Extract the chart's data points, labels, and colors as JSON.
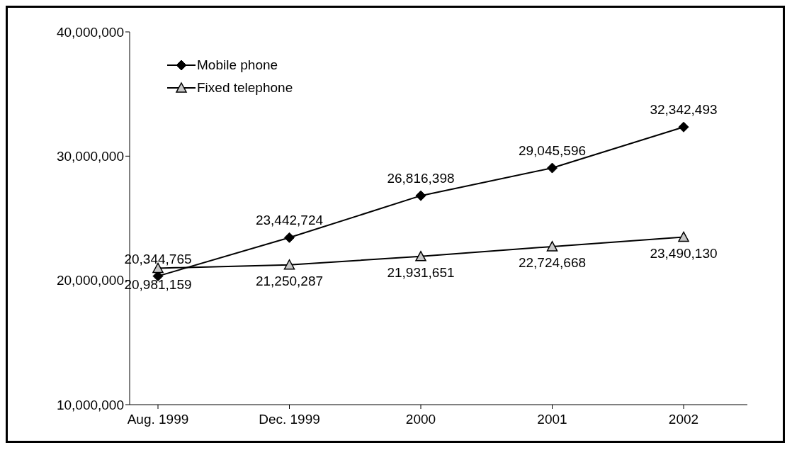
{
  "chart_data": {
    "type": "line",
    "categories": [
      "Aug. 1999",
      "Dec. 1999",
      "2000",
      "2001",
      "2002"
    ],
    "series": [
      {
        "name": "Mobile phone",
        "color": "#000000",
        "marker": "diamond",
        "values": [
          20344765,
          23442724,
          26816398,
          29045596,
          32342493
        ],
        "value_labels": [
          "20,344,765",
          "23,442,724",
          "26,816,398",
          "29,045,596",
          "32,342,493"
        ]
      },
      {
        "name": "Fixed telephone",
        "color": "#000000",
        "marker": "triangle",
        "values": [
          20981159,
          21250287,
          21931651,
          22724668,
          23490130
        ],
        "value_labels": [
          "20,981,159",
          "21,250,287",
          "21,931,651",
          "22,724,668",
          "23,490,130"
        ]
      }
    ],
    "ylim": [
      10000000,
      40000000
    ],
    "yticks": [
      {
        "value": 10000000,
        "label": "10,000,000"
      },
      {
        "value": 20000000,
        "label": "20,000,000"
      },
      {
        "value": 30000000,
        "label": "30,000,000"
      },
      {
        "value": 40000000,
        "label": "40,000,000"
      }
    ],
    "grid": false,
    "legend": "top left",
    "line_style": "solid"
  }
}
